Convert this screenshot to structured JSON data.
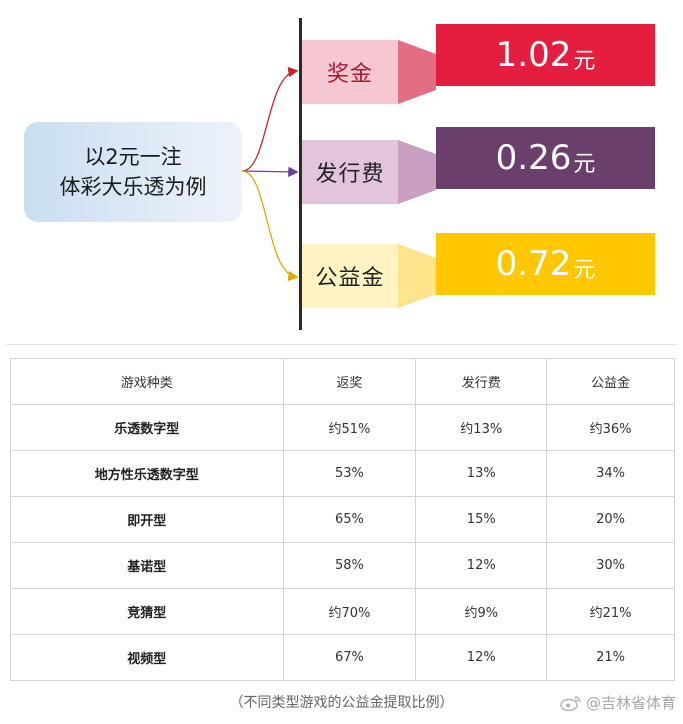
{
  "diagram": {
    "source_line1": "以2元一注",
    "source_line2": "体彩大乐透为例",
    "branches": [
      {
        "category": "奖金",
        "value": "1.02",
        "unit": "元",
        "box_color": "#f7c7d1",
        "text_color": "#a21b34",
        "value_color": "#e51e40",
        "arrow_color": "#e36d82",
        "line_color": "#c8252b"
      },
      {
        "category": "发行费",
        "value": "0.26",
        "unit": "元",
        "box_color": "#e2c5dd",
        "text_color": "#222222",
        "value_color": "#6b3f6c",
        "arrow_color": "#c89fc0",
        "line_color": "#6b3f9c"
      },
      {
        "category": "公益金",
        "value": "0.72",
        "unit": "元",
        "box_color": "#fff3c4",
        "text_color": "#222222",
        "value_color": "#ffc700",
        "arrow_color": "#ffe48a",
        "line_color": "#e0a800"
      }
    ]
  },
  "table": {
    "headers": [
      "游戏种类",
      "返奖",
      "发行费",
      "公益金"
    ],
    "rows": [
      [
        "乐透数字型",
        "约51%",
        "约13%",
        "约36%"
      ],
      [
        "地方性乐透数字型",
        "53%",
        "13%",
        "34%"
      ],
      [
        "即开型",
        "65%",
        "15%",
        "20%"
      ],
      [
        "基诺型",
        "58%",
        "12%",
        "30%"
      ],
      [
        "竞猜型",
        "约70%",
        "约9%",
        "约21%"
      ],
      [
        "视频型",
        "67%",
        "12%",
        "21%"
      ]
    ]
  },
  "caption": "（不同类型游戏的公益金提取比例）",
  "watermark": {
    "text": "@吉林省体育",
    "icon": "weibo-icon"
  }
}
